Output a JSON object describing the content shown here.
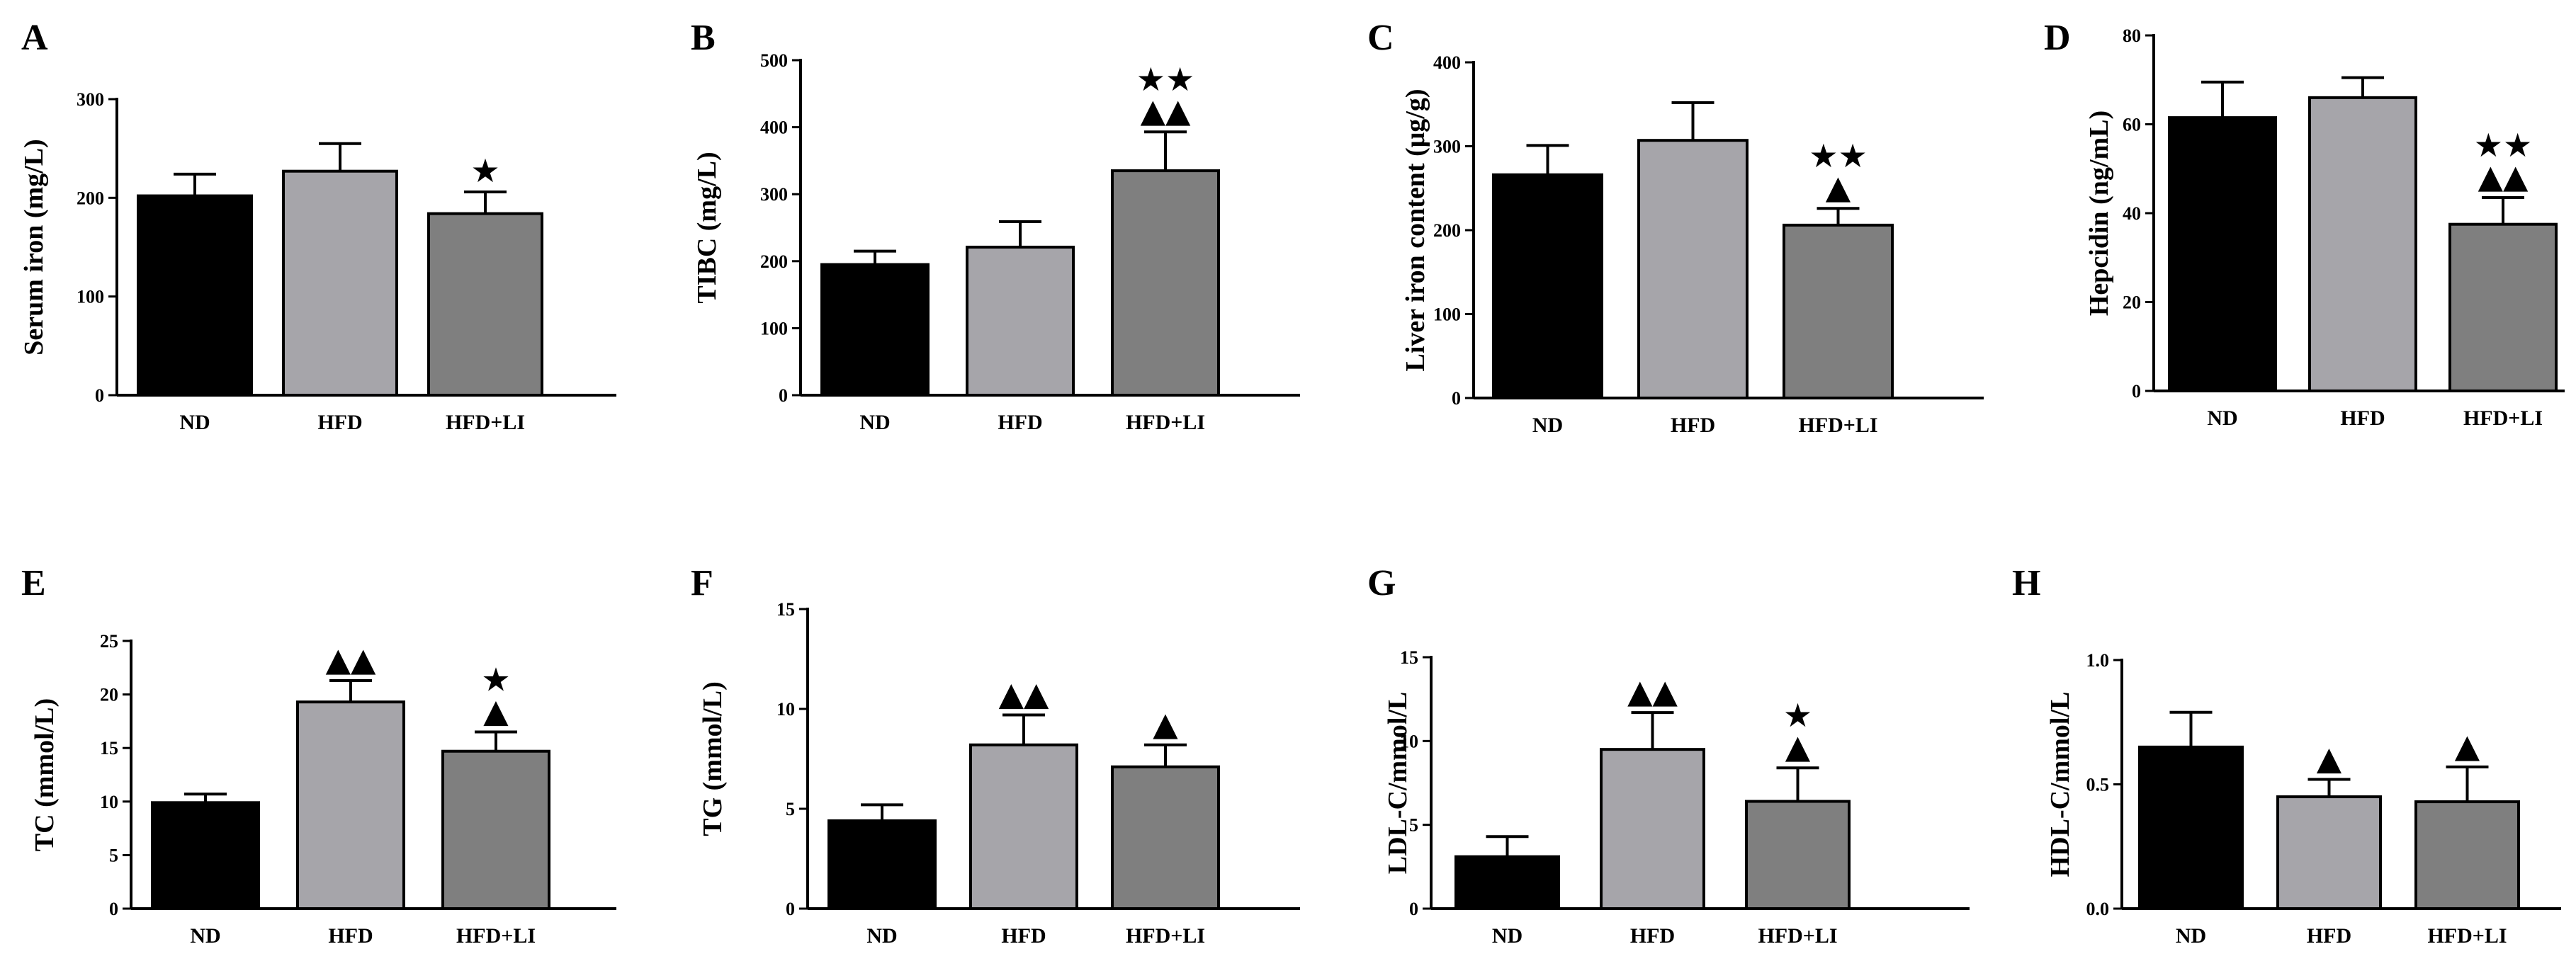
{
  "colors": {
    "ND": "#000000",
    "HFD": "#a6a5aa",
    "HFD+LI": "#7f7f7f",
    "axis": "#000000"
  },
  "chart_data": [
    {
      "letter": "A",
      "type": "bar",
      "ylabel": "Serum iron (mg/L)",
      "ylim": [
        0,
        300
      ],
      "yticks": [
        "0",
        "100",
        "200",
        "300"
      ],
      "categories": [
        "ND",
        "HFD",
        "HFD+LI"
      ],
      "values": [
        202,
        227,
        184
      ],
      "errors": [
        22,
        28,
        22
      ],
      "markers": [
        "",
        "",
        "★"
      ]
    },
    {
      "letter": "B",
      "type": "bar",
      "ylabel": "TIBC (mg/L)",
      "ylim": [
        0,
        500
      ],
      "yticks": [
        "0",
        "100",
        "200",
        "300",
        "400",
        "500"
      ],
      "categories": [
        "ND",
        "HFD",
        "HFD+LI"
      ],
      "values": [
        195,
        221,
        335
      ],
      "errors": [
        20,
        38,
        58
      ],
      "markers": [
        "",
        "",
        "★★\n▲▲"
      ]
    },
    {
      "letter": "C",
      "type": "bar",
      "ylabel": "Liver iron content (μg/g)",
      "ylim": [
        0,
        400
      ],
      "yticks": [
        "0",
        "100",
        "200",
        "300",
        "400"
      ],
      "categories": [
        "ND",
        "HFD",
        "HFD+LI"
      ],
      "values": [
        266,
        307,
        206
      ],
      "errors": [
        35,
        45,
        20
      ],
      "markers": [
        "",
        "",
        "★★\n▲"
      ]
    },
    {
      "letter": "D",
      "type": "bar",
      "ylabel": "Hepcidin (ng/mL)",
      "ylim": [
        0,
        80
      ],
      "yticks": [
        "0",
        "20",
        "40",
        "60",
        "80"
      ],
      "categories": [
        "ND",
        "HFD",
        "HFD+LI"
      ],
      "values": [
        61.5,
        66,
        37.5
      ],
      "errors": [
        8,
        4.5,
        6
      ],
      "markers": [
        "",
        "",
        "★★\n▲▲"
      ]
    },
    {
      "letter": "E",
      "type": "bar",
      "ylabel": "TC (mmol/L)",
      "ylim": [
        0,
        25
      ],
      "yticks": [
        "0",
        "5",
        "10",
        "15",
        "20",
        "25"
      ],
      "categories": [
        "ND",
        "HFD",
        "HFD+LI"
      ],
      "values": [
        9.9,
        19.3,
        14.7
      ],
      "errors": [
        0.8,
        2,
        1.8
      ],
      "markers": [
        "",
        "▲▲",
        "★\n▲"
      ]
    },
    {
      "letter": "F",
      "type": "bar",
      "ylabel": "TG (mmol/L)",
      "ylim": [
        0,
        15
      ],
      "yticks": [
        "0",
        "5",
        "10",
        "15"
      ],
      "categories": [
        "ND",
        "HFD",
        "HFD+LI"
      ],
      "values": [
        4.4,
        8.2,
        7.1
      ],
      "errors": [
        0.8,
        1.5,
        1.1
      ],
      "markers": [
        "",
        "▲▲",
        "▲"
      ]
    },
    {
      "letter": "G",
      "type": "bar",
      "ylabel": "LDL-C/mmol/L",
      "ylim": [
        0,
        15
      ],
      "yticks": [
        "0",
        "5",
        "10",
        "15"
      ],
      "categories": [
        "ND",
        "HFD",
        "HFD+LI"
      ],
      "values": [
        3.1,
        9.5,
        6.4
      ],
      "errors": [
        1.2,
        2.2,
        2.0
      ],
      "markers": [
        "",
        "▲▲",
        "★\n▲"
      ]
    },
    {
      "letter": "H",
      "type": "bar",
      "ylabel": "HDL-C/mmol/L",
      "ylim": [
        0,
        1.0
      ],
      "yticks": [
        "0.0",
        "0.5",
        "1.0"
      ],
      "categories": [
        "ND",
        "HFD",
        "HFD+LI"
      ],
      "values": [
        0.65,
        0.45,
        0.43
      ],
      "errors": [
        0.14,
        0.07,
        0.14
      ],
      "markers": [
        "",
        "▲",
        "▲"
      ]
    }
  ]
}
